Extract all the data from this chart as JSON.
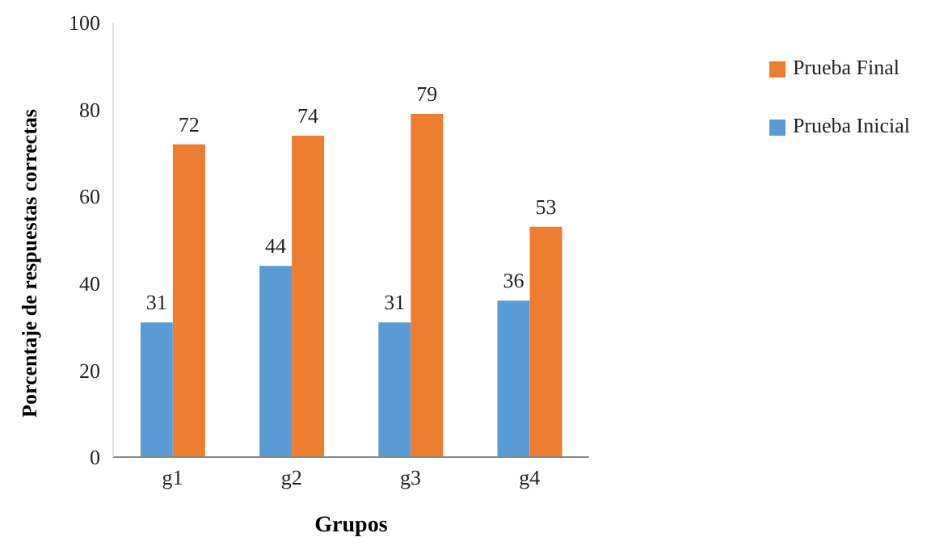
{
  "chart_data": {
    "type": "bar",
    "xlabel": "Grupos",
    "ylabel": "Porcentaje de respuestas correctas",
    "categories": [
      "g1",
      "g2",
      "g3",
      "g4"
    ],
    "series": [
      {
        "name": "Prueba Inicial",
        "color": "#5b9bd5",
        "values": [
          31,
          44,
          31,
          36
        ]
      },
      {
        "name": "Prueba Final",
        "color": "#ed7d31",
        "values": [
          72,
          74,
          79,
          53
        ]
      }
    ],
    "ylim": [
      0,
      100
    ],
    "yticks": [
      0,
      20,
      40,
      60,
      80,
      100
    ],
    "data_labels": true,
    "legend": "top right",
    "grid": false
  }
}
